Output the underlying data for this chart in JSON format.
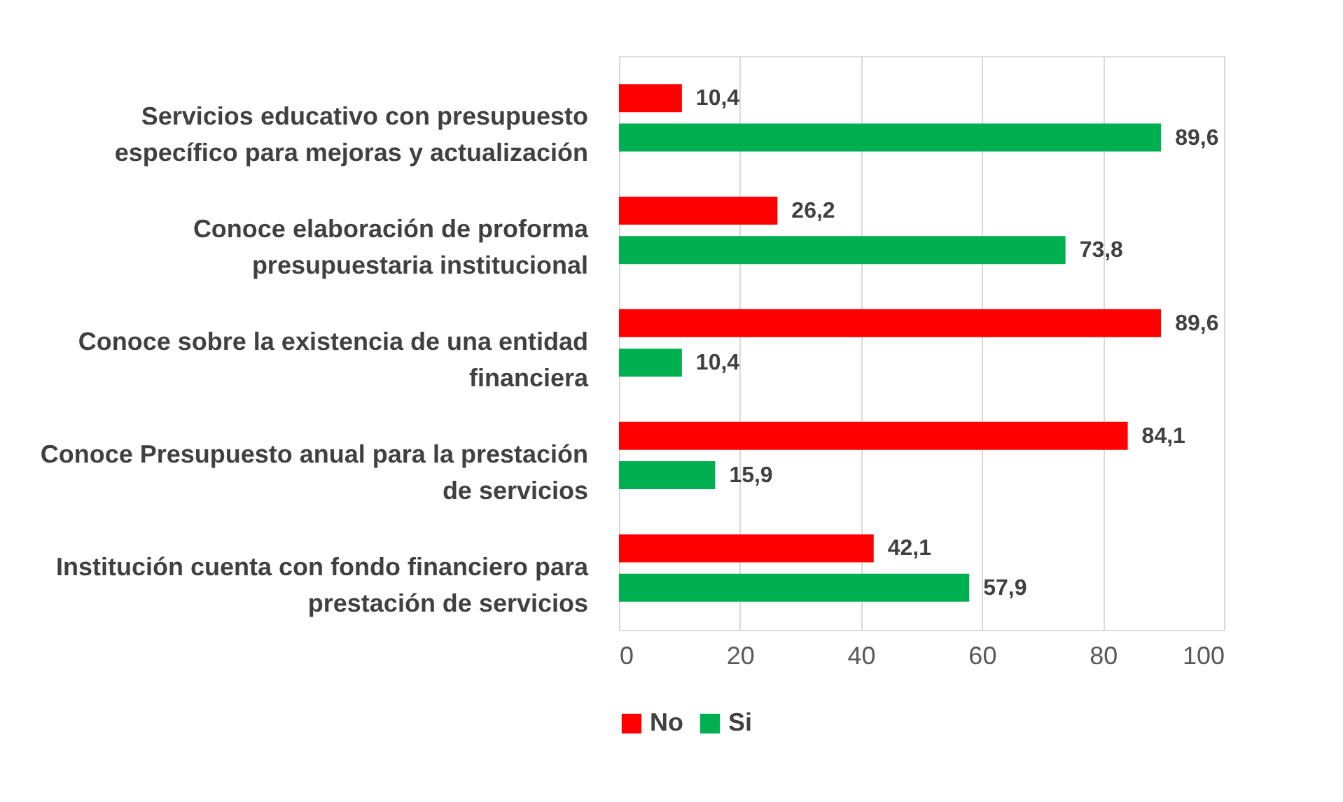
{
  "chart_data": {
    "type": "bar",
    "orientation": "horizontal",
    "categories": [
      "Servicios educativo  con presupuesto específico para mejoras y actualización",
      "Conoce  elaboración de proforma presupuestaria institucional",
      "Conoce  sobre la existencia de una entidad financiera",
      "Conoce Presupuesto anual para la prestación de servicios",
      "Institución cuenta con fondo financiero para prestación de servicios"
    ],
    "series": [
      {
        "name": "No",
        "color": "#ff0000",
        "values": [
          10.4,
          26.2,
          89.6,
          84.1,
          42.1
        ],
        "value_labels": [
          "10,4",
          "26,2",
          "89,6",
          "84,1",
          "42,1"
        ]
      },
      {
        "name": "Si",
        "color": "#00b050",
        "values": [
          89.6,
          73.8,
          10.4,
          15.9,
          57.9
        ],
        "value_labels": [
          "89,6",
          "73,8",
          "10,4",
          "15,9",
          "57,9"
        ]
      }
    ],
    "xlim": [
      0,
      100
    ],
    "xticks": [
      0,
      20,
      40,
      60,
      80,
      100
    ],
    "grid": "x",
    "legend": "bottom"
  }
}
